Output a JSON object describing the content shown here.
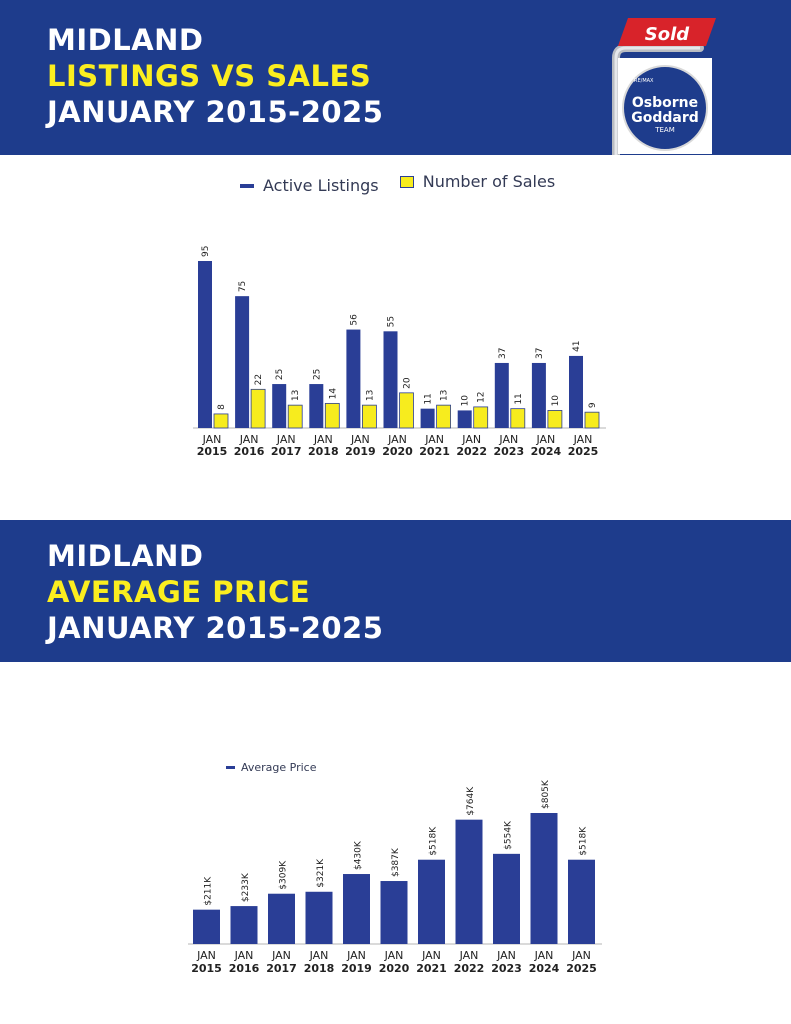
{
  "header1": {
    "line1": "MIDLAND",
    "line2": "LISTINGS VS SALES",
    "line3": "JANUARY 2015-2025"
  },
  "header2": {
    "line1": "MIDLAND",
    "line2": "AVERAGE PRICE",
    "line3": "JANUARY 2015-2025"
  },
  "logo": {
    "sign_text": "Sold",
    "brand_small": "RE/MAX",
    "name1": "Osborne",
    "name2": "Goddard",
    "name3": "TEAM"
  },
  "colors": {
    "navy": "#1e3c8c",
    "bar_blue": "#2a3e96",
    "yellow": "#f7ec1e",
    "red": "#d8232a"
  },
  "chart_data": [
    {
      "type": "bar",
      "title": "LISTINGS VS SALES",
      "legend_position": "top",
      "categories": [
        [
          "JAN",
          "2015"
        ],
        [
          "JAN",
          "2016"
        ],
        [
          "JAN",
          "2017"
        ],
        [
          "JAN",
          "2018"
        ],
        [
          "JAN",
          "2019"
        ],
        [
          "JAN",
          "2020"
        ],
        [
          "JAN",
          "2021"
        ],
        [
          "JAN",
          "2022"
        ],
        [
          "JAN",
          "2023"
        ],
        [
          "JAN",
          "2024"
        ],
        [
          "JAN",
          "2025"
        ]
      ],
      "series": [
        {
          "name": "Active Listings",
          "values": [
            95,
            75,
            25,
            25,
            56,
            55,
            11,
            10,
            37,
            37,
            41
          ],
          "labels": [
            "95",
            "75",
            "25",
            "25",
            "56",
            "55",
            "11",
            "10",
            "37",
            "37",
            "41"
          ],
          "color": "#2a3e96"
        },
        {
          "name": "Number of Sales",
          "values": [
            8,
            22,
            13,
            14,
            13,
            20,
            13,
            12,
            11,
            10,
            9
          ],
          "labels": [
            "8",
            "22",
            "13",
            "14",
            "13",
            "20",
            "13",
            "12",
            "11",
            "10",
            "9"
          ],
          "color": "#f7ec1e"
        }
      ],
      "ylim": [
        0,
        95
      ],
      "grid": false
    },
    {
      "type": "bar",
      "title": "AVERAGE PRICE",
      "legend_position": "top-left",
      "categories": [
        [
          "JAN",
          "2015"
        ],
        [
          "JAN",
          "2016"
        ],
        [
          "JAN",
          "2017"
        ],
        [
          "JAN",
          "2018"
        ],
        [
          "JAN",
          "2019"
        ],
        [
          "JAN",
          "2020"
        ],
        [
          "JAN",
          "2021"
        ],
        [
          "JAN",
          "2022"
        ],
        [
          "JAN",
          "2023"
        ],
        [
          "JAN",
          "2024"
        ],
        [
          "JAN",
          "2025"
        ]
      ],
      "series": [
        {
          "name": "Average Price",
          "values": [
            211,
            233,
            309,
            321,
            430,
            387,
            518,
            764,
            554,
            805,
            518
          ],
          "labels": [
            "$211K",
            "$233K",
            "$309K",
            "$321K",
            "$430K",
            "$387K",
            "$518K",
            "$764K",
            "$554K",
            "$805K",
            "$518K"
          ],
          "color": "#2a3e96"
        }
      ],
      "unit": "thousands of dollars",
      "ylim": [
        0,
        805
      ],
      "grid": false
    }
  ]
}
